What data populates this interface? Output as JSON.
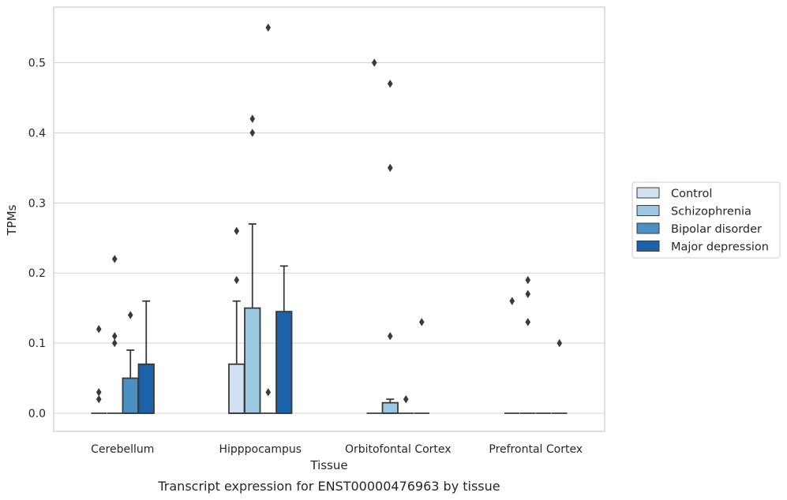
{
  "chart_data": {
    "type": "box",
    "caption": "Transcript expression for ENST00000476963 by tissue",
    "xlabel": "Tissue",
    "ylabel": "TPMs",
    "ylim": [
      -0.027,
      0.58
    ],
    "yticks": [
      "0.0",
      "0.1",
      "0.2",
      "0.3",
      "0.4",
      "0.5"
    ],
    "ytick_values": [
      0,
      0.1,
      0.2,
      0.3,
      0.4,
      0.5
    ],
    "grid": "horizontal",
    "legend_position": "right",
    "categories": [
      "Cerebellum",
      "Hipppocampus",
      "Orbitofontal Cortex",
      "Prefrontal Cortex"
    ],
    "series": [
      {
        "name": "Control",
        "color": "#d0e1f2",
        "boxes": [
          {
            "q1": 0,
            "median": 0,
            "q3": 0,
            "whisker_low": 0,
            "whisker_high": 0,
            "outliers": [
              0.12,
              0.03,
              0.02
            ]
          },
          {
            "q1": 0,
            "median": 0,
            "q3": 0.07,
            "whisker_low": 0,
            "whisker_high": 0.16,
            "outliers": [
              0.26,
              0.19
            ]
          },
          {
            "q1": 0,
            "median": 0,
            "q3": 0,
            "whisker_low": 0,
            "whisker_high": 0,
            "outliers": [
              0.5
            ]
          },
          {
            "q1": 0,
            "median": 0,
            "q3": 0,
            "whisker_low": 0,
            "whisker_high": 0,
            "outliers": [
              0.16
            ]
          }
        ]
      },
      {
        "name": "Schizophrenia",
        "color": "#9ac8e0",
        "boxes": [
          {
            "q1": 0,
            "median": 0,
            "q3": 0,
            "whisker_low": 0,
            "whisker_high": 0,
            "outliers": [
              0.22,
              0.11,
              0.1
            ]
          },
          {
            "q1": 0,
            "median": 0,
            "q3": 0.15,
            "whisker_low": 0,
            "whisker_high": 0.27,
            "outliers": [
              0.42,
              0.4
            ]
          },
          {
            "q1": 0,
            "median": 0,
            "q3": 0.015,
            "whisker_low": 0,
            "whisker_high": 0.02,
            "outliers": [
              0.47,
              0.35,
              0.11
            ]
          },
          {
            "q1": 0,
            "median": 0,
            "q3": 0,
            "whisker_low": 0,
            "whisker_high": 0,
            "outliers": [
              0.19,
              0.17,
              0.13
            ]
          }
        ]
      },
      {
        "name": "Bipolar disorder",
        "color": "#4a90c2",
        "boxes": [
          {
            "q1": 0,
            "median": 0,
            "q3": 0.05,
            "whisker_low": 0,
            "whisker_high": 0.09,
            "outliers": [
              0.14
            ]
          },
          {
            "q1": 0,
            "median": 0,
            "q3": 0,
            "whisker_low": 0,
            "whisker_high": 0,
            "outliers": [
              0.55,
              0.03
            ]
          },
          {
            "q1": 0,
            "median": 0,
            "q3": 0,
            "whisker_low": 0,
            "whisker_high": 0,
            "outliers": [
              0.02
            ]
          },
          {
            "q1": 0,
            "median": 0,
            "q3": 0,
            "whisker_low": 0,
            "whisker_high": 0,
            "outliers": []
          }
        ]
      },
      {
        "name": "Major depression",
        "color": "#1c62a8",
        "boxes": [
          {
            "q1": 0,
            "median": 0,
            "q3": 0.07,
            "whisker_low": 0,
            "whisker_high": 0.16,
            "outliers": []
          },
          {
            "q1": 0,
            "median": 0,
            "q3": 0.145,
            "whisker_low": 0,
            "whisker_high": 0.21,
            "outliers": []
          },
          {
            "q1": 0,
            "median": 0,
            "q3": 0,
            "whisker_low": 0,
            "whisker_high": 0,
            "outliers": [
              0.13
            ]
          },
          {
            "q1": 0,
            "median": 0,
            "q3": 0,
            "whisker_low": 0,
            "whisker_high": 0,
            "outliers": [
              0.1
            ]
          }
        ]
      }
    ]
  }
}
